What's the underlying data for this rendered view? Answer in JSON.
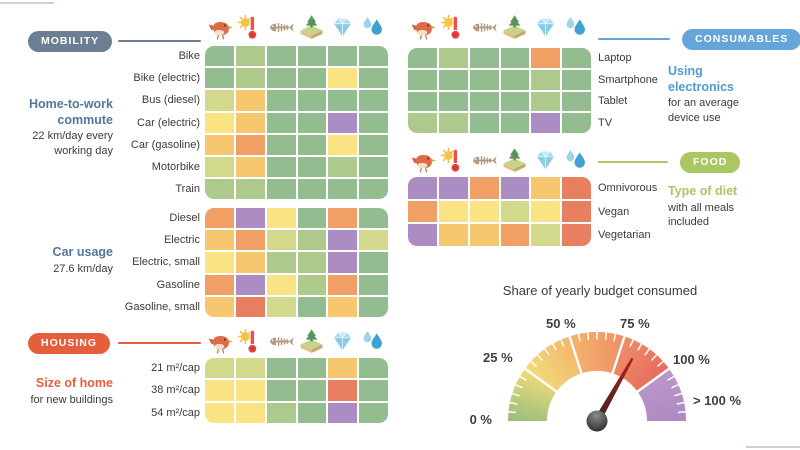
{
  "palette": {
    "G": "#93bd90",
    "LG": "#adc98b",
    "YG": "#d3d98c",
    "Y": "#f9e383",
    "YO": "#f6c76e",
    "O": "#f0a064",
    "RO": "#e87f60",
    "P": "#ab8cc3"
  },
  "column_icons": [
    "bird",
    "climate",
    "fish-skeleton",
    "land-use",
    "minerals",
    "water-drops"
  ],
  "sections": {
    "mobility": {
      "badge": "MOBILITY",
      "badge_color": "#6b7e94",
      "title_color": "#53779e",
      "commute": {
        "title": "Home-to-work commute",
        "desc": "22 km/day every working day"
      },
      "car_usage": {
        "title": "Car usage",
        "desc": "27.6 km/day"
      }
    },
    "housing": {
      "badge": "HOUSING",
      "badge_color": "#e55f3d",
      "title_color": "#e55f3d",
      "title": "Size of home",
      "desc": "for new buildings"
    },
    "consumables": {
      "badge": "CONSUMABLES",
      "badge_color": "#66a5da",
      "title_color": "#4f9bd7",
      "title": "Using electronics",
      "desc": "for an average device use"
    },
    "food": {
      "badge": "FOOD",
      "badge_color": "#a9c763",
      "title_color": "#a9c763",
      "title": "Type of diet",
      "desc": "with all meals included"
    }
  },
  "chart_data": [
    {
      "type": "heatmap",
      "title": "Home-to-work commute (22 km/day every working day)",
      "columns": [
        "bird",
        "climate",
        "fish-skeleton",
        "land-use",
        "minerals",
        "water-drops"
      ],
      "rows": [
        "Bike",
        "Bike (electric)",
        "Bus (diesel)",
        "Car (electric)",
        "Car (gasoline)",
        "Motorbike",
        "Train"
      ],
      "values": [
        [
          "G",
          "LG",
          "G",
          "G",
          "G",
          "G"
        ],
        [
          "G",
          "LG",
          "G",
          "G",
          "Y",
          "G"
        ],
        [
          "YG",
          "YO",
          "G",
          "G",
          "G",
          "G"
        ],
        [
          "Y",
          "YO",
          "G",
          "G",
          "P",
          "G"
        ],
        [
          "YO",
          "O",
          "G",
          "G",
          "Y",
          "G"
        ],
        [
          "YG",
          "YO",
          "G",
          "G",
          "LG",
          "G"
        ],
        [
          "LG",
          "LG",
          "G",
          "G",
          "G",
          "G"
        ]
      ]
    },
    {
      "type": "heatmap",
      "title": "Car usage (27.6 km/day)",
      "columns": [
        "bird",
        "climate",
        "fish-skeleton",
        "land-use",
        "minerals",
        "water-drops"
      ],
      "rows": [
        "Diesel",
        "Electric",
        "Electric, small",
        "Gasoline",
        "Gasoline, small"
      ],
      "values": [
        [
          "O",
          "P",
          "Y",
          "G",
          "O",
          "G"
        ],
        [
          "YO",
          "O",
          "YG",
          "LG",
          "P",
          "YG"
        ],
        [
          "Y",
          "YO",
          "LG",
          "LG",
          "P",
          "G"
        ],
        [
          "O",
          "P",
          "Y",
          "LG",
          "O",
          "G"
        ],
        [
          "YO",
          "RO",
          "YG",
          "G",
          "YO",
          "G"
        ]
      ]
    },
    {
      "type": "heatmap",
      "title": "Size of home (for new buildings)",
      "columns": [
        "bird",
        "climate",
        "fish-skeleton",
        "land-use",
        "minerals",
        "water-drops"
      ],
      "rows": [
        "21 m²/cap",
        "38 m²/cap",
        "54 m²/cap"
      ],
      "values": [
        [
          "YG",
          "YG",
          "G",
          "G",
          "YO",
          "G"
        ],
        [
          "Y",
          "Y",
          "G",
          "G",
          "RO",
          "G"
        ],
        [
          "Y",
          "Y",
          "LG",
          "G",
          "P",
          "G"
        ]
      ]
    },
    {
      "type": "heatmap",
      "title": "Using electronics (for an average device use)",
      "columns": [
        "bird",
        "climate",
        "fish-skeleton",
        "land-use",
        "minerals",
        "water-drops"
      ],
      "rows": [
        "Laptop",
        "Smartphone",
        "Tablet",
        "TV"
      ],
      "values": [
        [
          "G",
          "LG",
          "G",
          "G",
          "O",
          "G"
        ],
        [
          "G",
          "G",
          "G",
          "G",
          "LG",
          "G"
        ],
        [
          "G",
          "G",
          "G",
          "G",
          "LG",
          "G"
        ],
        [
          "LG",
          "LG",
          "G",
          "G",
          "P",
          "G"
        ]
      ]
    },
    {
      "type": "heatmap",
      "title": "Type of diet (with all meals included)",
      "columns": [
        "bird",
        "climate",
        "fish-skeleton",
        "land-use",
        "minerals",
        "water-drops"
      ],
      "rows": [
        "Omnivorous",
        "Vegan",
        "Vegetarian"
      ],
      "values": [
        [
          "P",
          "P",
          "O",
          "P",
          "YO",
          "RO"
        ],
        [
          "O",
          "Y",
          "Y",
          "YG",
          "Y",
          "RO"
        ],
        [
          "P",
          "YO",
          "YO",
          "O",
          "YG",
          "RO"
        ]
      ]
    },
    {
      "type": "gauge",
      "title": "Share of yearly budget consumed",
      "tick_labels": [
        "0 %",
        "25 %",
        "50 %",
        "75 %",
        "100 %",
        "> 100 %"
      ],
      "needle_pct": 83,
      "segment_colors": [
        [
          "#96bd7d",
          "#f2db7a"
        ],
        [
          "#f2db7a",
          "#f3b66b"
        ],
        [
          "#f3b66b",
          "#ee8f68"
        ],
        [
          "#ee8f68",
          "#e7695d"
        ],
        [
          "#bb98cc",
          "#ad88c1"
        ]
      ]
    }
  ]
}
